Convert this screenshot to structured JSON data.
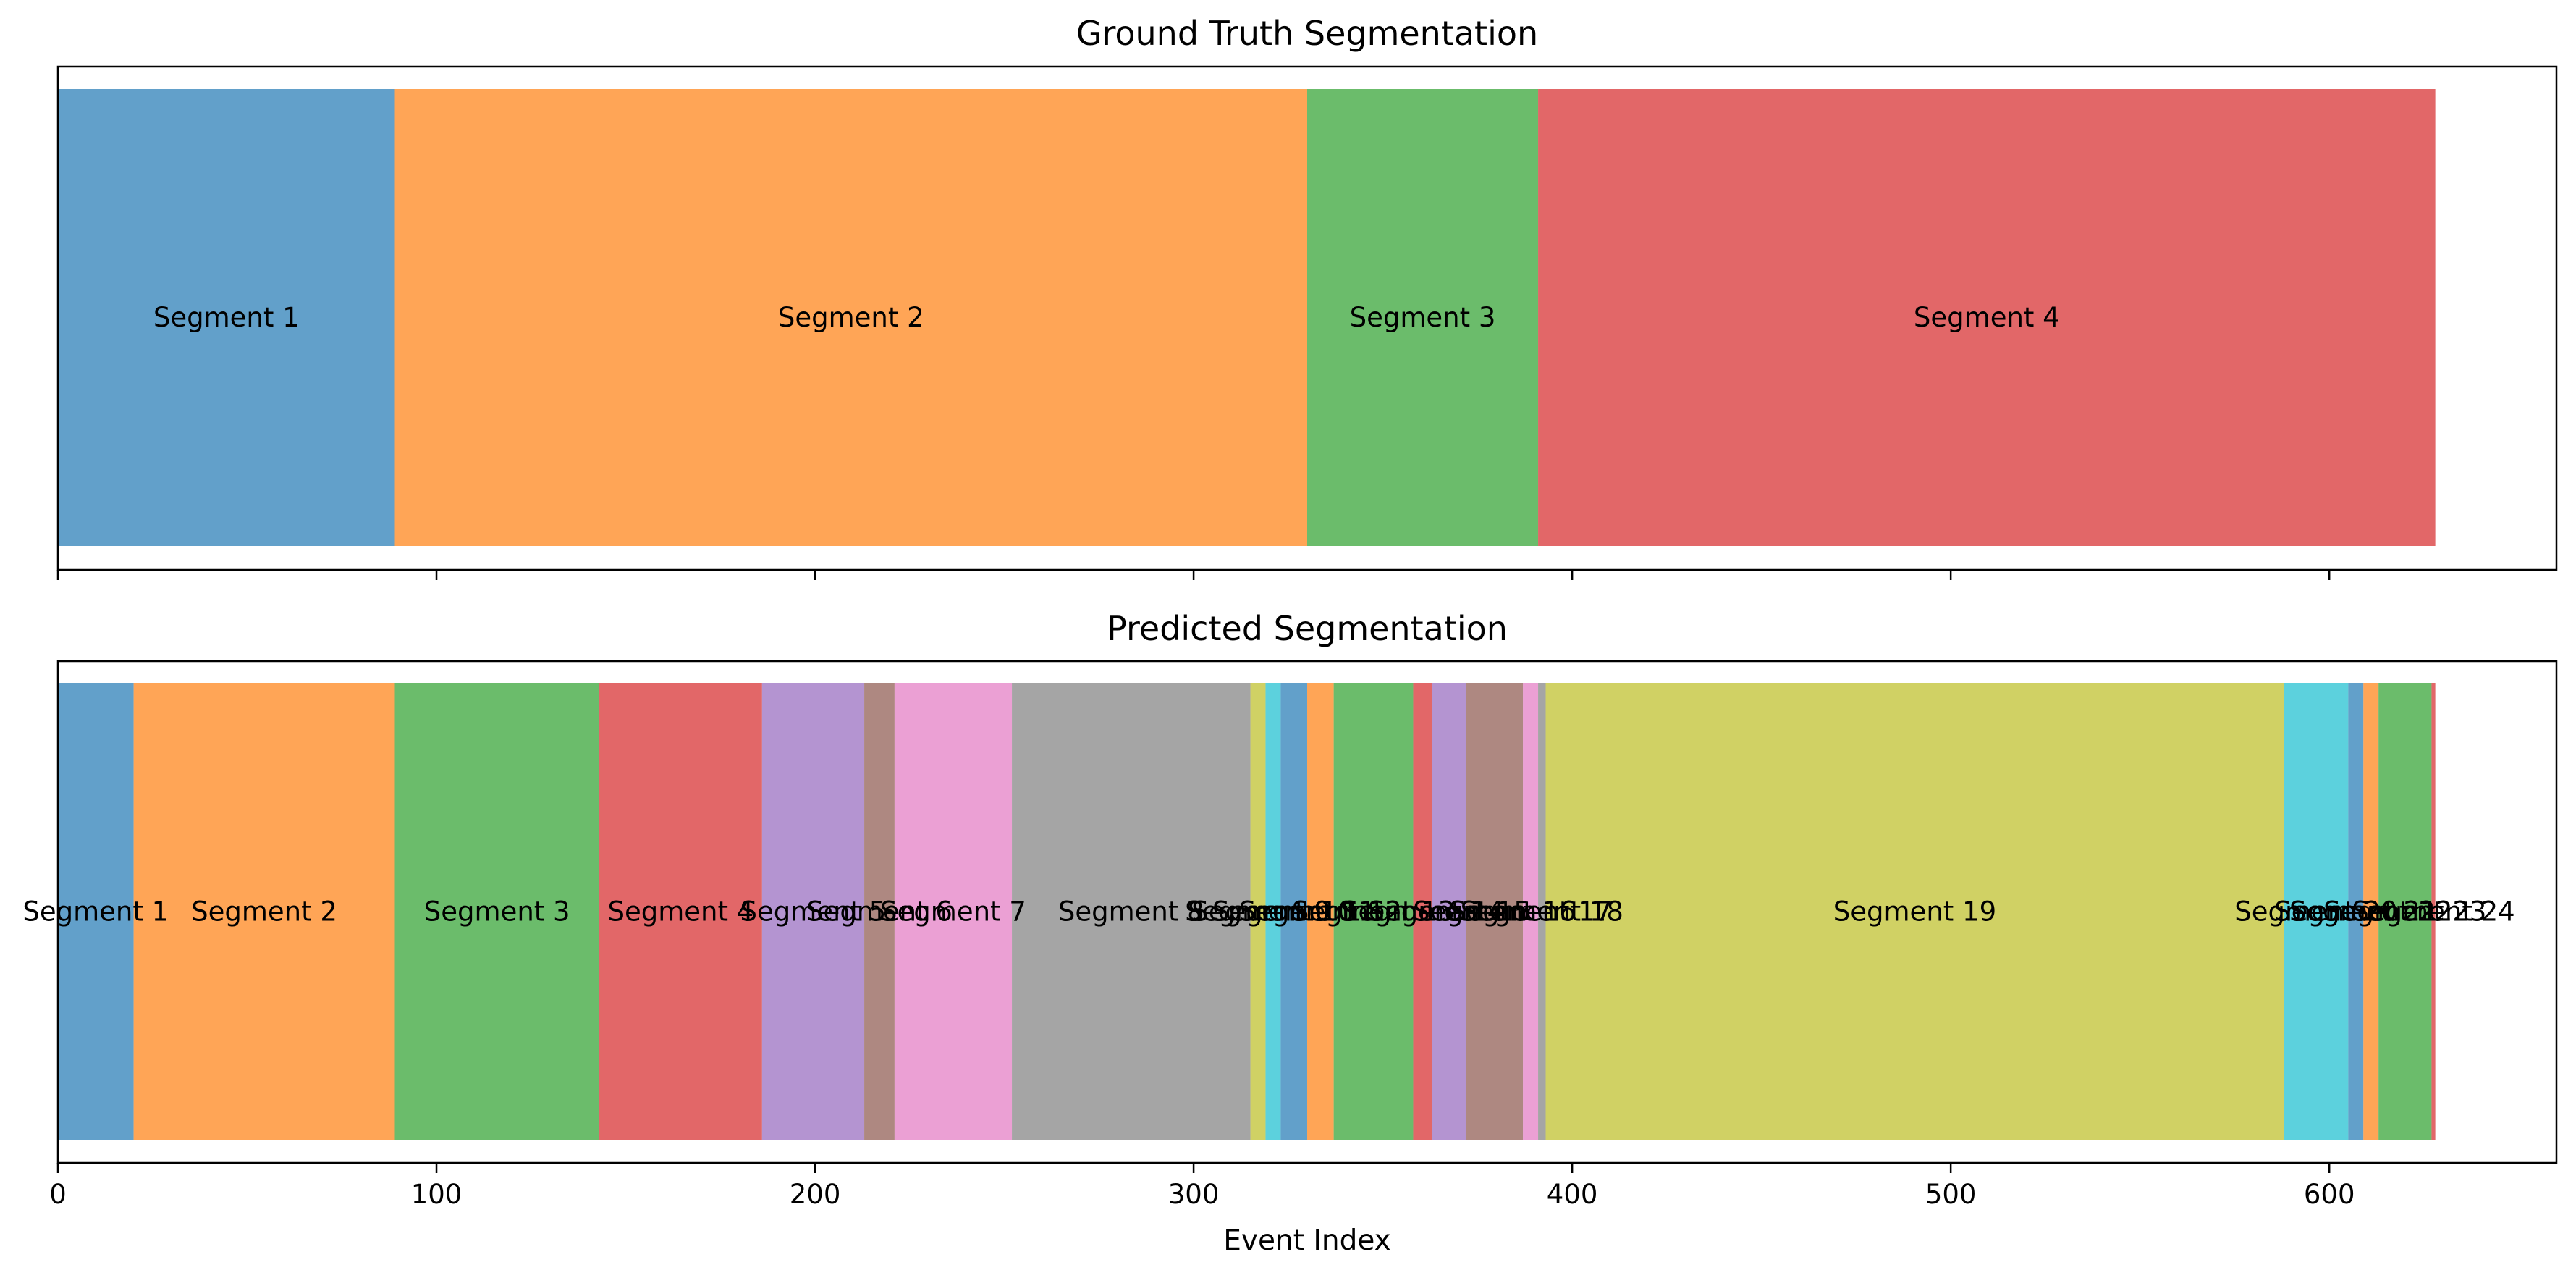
{
  "chart_data": [
    {
      "type": "bar",
      "title": "Ground Truth Segmentation",
      "xlabel": "",
      "xlim": [
        0,
        660
      ],
      "segments": [
        {
          "label": "Segment 1",
          "start": 0,
          "end": 89,
          "color": "#1f77b4"
        },
        {
          "label": "Segment 2",
          "start": 89,
          "end": 330,
          "color": "#ff7f0e"
        },
        {
          "label": "Segment 3",
          "start": 330,
          "end": 391,
          "color": "#2ca02c"
        },
        {
          "label": "Segment 4",
          "start": 391,
          "end": 628,
          "color": "#d62728"
        }
      ]
    },
    {
      "type": "bar",
      "title": "Predicted Segmentation",
      "xlabel": "Event Index",
      "xlim": [
        0,
        660
      ],
      "xticks": [
        0,
        100,
        200,
        300,
        400,
        500,
        600
      ],
      "segments": [
        {
          "label": "Segment 1",
          "start": 0,
          "end": 20,
          "color": "#1f77b4"
        },
        {
          "label": "Segment 2",
          "start": 20,
          "end": 89,
          "color": "#ff7f0e"
        },
        {
          "label": "Segment 3",
          "start": 89,
          "end": 143,
          "color": "#2ca02c"
        },
        {
          "label": "Segment 4",
          "start": 143,
          "end": 186,
          "color": "#d62728"
        },
        {
          "label": "Segment 5",
          "start": 186,
          "end": 213,
          "color": "#9467bd"
        },
        {
          "label": "Segment 6",
          "start": 213,
          "end": 221,
          "color": "#8c564b"
        },
        {
          "label": "Segment 7",
          "start": 221,
          "end": 252,
          "color": "#e377c2"
        },
        {
          "label": "Segment 8",
          "start": 252,
          "end": 315,
          "color": "#7f7f7f"
        },
        {
          "label": "Segment 9",
          "start": 315,
          "end": 319,
          "color": "#bcbd22"
        },
        {
          "label": "Segment 10",
          "start": 319,
          "end": 323,
          "color": "#17becf"
        },
        {
          "label": "Segment 11",
          "start": 323,
          "end": 330,
          "color": "#1f77b4"
        },
        {
          "label": "Segment 12",
          "start": 330,
          "end": 337,
          "color": "#ff7f0e"
        },
        {
          "label": "Segment 13",
          "start": 337,
          "end": 358,
          "color": "#2ca02c"
        },
        {
          "label": "Segment 14",
          "start": 358,
          "end": 363,
          "color": "#d62728"
        },
        {
          "label": "Segment 15",
          "start": 363,
          "end": 372,
          "color": "#9467bd"
        },
        {
          "label": "Segment 16",
          "start": 372,
          "end": 387,
          "color": "#8c564b"
        },
        {
          "label": "Segment 17",
          "start": 387,
          "end": 391,
          "color": "#e377c2"
        },
        {
          "label": "Segment 18",
          "start": 391,
          "end": 393,
          "color": "#7f7f7f"
        },
        {
          "label": "Segment 19",
          "start": 393,
          "end": 588,
          "color": "#bcbd22"
        },
        {
          "label": "Segment 20",
          "start": 588,
          "end": 605,
          "color": "#17becf"
        },
        {
          "label": "Segment 21",
          "start": 605,
          "end": 609,
          "color": "#1f77b4"
        },
        {
          "label": "Segment 22",
          "start": 609,
          "end": 613,
          "color": "#ff7f0e"
        },
        {
          "label": "Segment 23",
          "start": 613,
          "end": 627,
          "color": "#2ca02c"
        },
        {
          "label": "Segment 24",
          "start": 627,
          "end": 628,
          "color": "#d62728"
        }
      ]
    }
  ]
}
